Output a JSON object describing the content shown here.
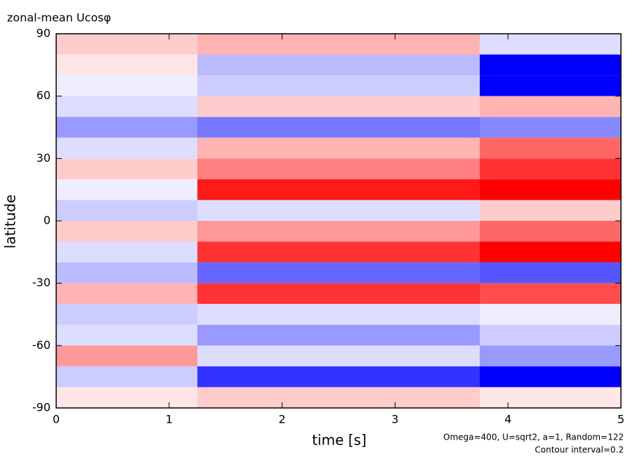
{
  "chart_data": {
    "type": "contour",
    "title": "zonal-mean Ucosφ",
    "x_label": "time [s]",
    "y_label": "latitude",
    "annotations": [
      "Omega=400, U=sqrt2, a=1, Random=122",
      "Contour interval=0.2"
    ],
    "x": [
      0,
      2.5,
      5
    ],
    "y": [
      85,
      75,
      65,
      55,
      45,
      35,
      25,
      15,
      5,
      -5,
      -15,
      -25,
      -35,
      -45,
      -55,
      -65,
      -75,
      -85
    ],
    "z": [
      [
        0.4,
        0.6,
        -0.4
      ],
      [
        0.2,
        -0.8,
        -3
      ],
      [
        -0.2,
        -0.6,
        -3
      ],
      [
        -0.4,
        0.4,
        0.6
      ],
      [
        -1.2,
        -1.6,
        -1.4
      ],
      [
        -0.4,
        0.6,
        1.2
      ],
      [
        0.4,
        1.0,
        1.6
      ],
      [
        -0.2,
        1.8,
        2.0
      ],
      [
        -0.6,
        -0.4,
        0.4
      ],
      [
        0.4,
        0.8,
        1.2
      ],
      [
        -0.4,
        1.6,
        2.0
      ],
      [
        -0.8,
        -1.8,
        -2.0
      ],
      [
        0.6,
        1.6,
        1.4
      ],
      [
        -0.6,
        -0.4,
        -0.2
      ],
      [
        -0.4,
        -1.2,
        -0.6
      ],
      [
        0.8,
        -0.4,
        -1.2
      ],
      [
        -0.6,
        -2.4,
        -3
      ],
      [
        0.2,
        0.4,
        0.2
      ]
    ],
    "xlim": [
      0,
      5
    ],
    "xticks": [
      0,
      1,
      2,
      3,
      4,
      5
    ],
    "ylim": [
      -90,
      90
    ],
    "yticks": [
      -90,
      -60,
      -30,
      0,
      30,
      60,
      90
    ],
    "positive_color": "#ff0000",
    "negative_color": "#0000ff"
  }
}
